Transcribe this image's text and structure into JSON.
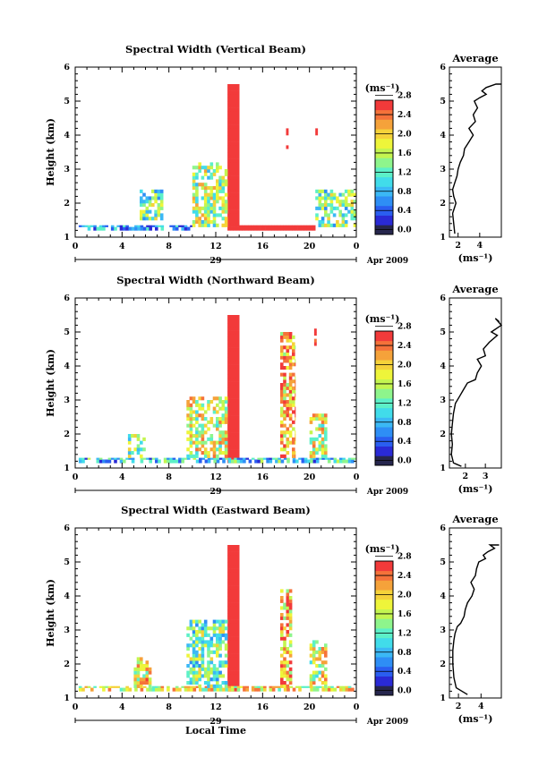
{
  "date_label": "Apr 2009",
  "day_label": "29",
  "local_time_label": "Local Time",
  "colorbar_unit": "(ms⁻¹)",
  "colorbar_colors": [
    "#26264d",
    "#2a2ad6",
    "#2a5ef0",
    "#2e8ef5",
    "#3bb8f5",
    "#41dcea",
    "#5cf0c8",
    "#8ef58c",
    "#c4f550",
    "#eef53a",
    "#f5d23a",
    "#f5a23a",
    "#f5723a",
    "#f23a3a"
  ],
  "colorbar_ticks": [
    "0.0",
    "0.4",
    "0.8",
    "1.2",
    "1.6",
    "2.0",
    "2.4",
    "2.8"
  ],
  "panels": [
    {
      "title": "Spectral Width (Vertical Beam)",
      "ylabel": "Height (km)",
      "avg_title": "Average",
      "avg_xlabel": "(ms⁻¹)",
      "avg_xticks": [
        "2",
        "4"
      ],
      "avg_xlim": [
        1.2,
        6.0
      ]
    },
    {
      "title": "Spectral Width (Northward Beam)",
      "ylabel": "Height (km)",
      "avg_title": "Average",
      "avg_xlabel": "(ms⁻¹)",
      "avg_xticks": [
        "2",
        "3"
      ],
      "avg_xlim": [
        1.2,
        3.8
      ]
    },
    {
      "title": "Spectral Width (Eastward Beam)",
      "ylabel": "Height (km)",
      "avg_title": "Average",
      "avg_xlabel": "(ms⁻¹)",
      "avg_xticks": [
        "2",
        "4"
      ],
      "avg_xlim": [
        1.2,
        5.8
      ]
    }
  ],
  "chart_data": [
    {
      "type": "heatmap",
      "title": "Spectral Width (Vertical Beam)",
      "ylabel": "Height (km)",
      "xticks": [
        "0",
        "4",
        "8",
        "12",
        "16",
        "20",
        "0"
      ],
      "yticks": [
        "1",
        "2",
        "3",
        "4",
        "5",
        "6"
      ],
      "xlim": [
        0,
        24
      ],
      "ylim": [
        1,
        6
      ],
      "colorbar": {
        "label": "(ms⁻¹)",
        "ticks": [
          0.0,
          0.4,
          0.8,
          1.2,
          1.6,
          2.0,
          2.4,
          2.8
        ]
      },
      "regions": [
        {
          "x": [
            13.0,
            14.0
          ],
          "y": [
            1.2,
            5.5
          ],
          "value": 3.0
        },
        {
          "x": [
            14.0,
            20.5
          ],
          "y": [
            1.2,
            1.35
          ],
          "value": 3.0
        },
        {
          "x": [
            0.3,
            10.0
          ],
          "y": [
            1.2,
            1.35
          ],
          "value": 0.8
        },
        {
          "x": [
            10.0,
            13.0
          ],
          "y": [
            1.3,
            3.2
          ],
          "value": 1.6
        },
        {
          "x": [
            20.5,
            24.0
          ],
          "y": [
            1.3,
            2.4
          ],
          "value": 1.4
        },
        {
          "x": [
            5.5,
            7.5
          ],
          "y": [
            1.5,
            2.4
          ],
          "value": 1.4
        },
        {
          "x": [
            18.0,
            18.2
          ],
          "y": [
            3.3,
            4.2
          ],
          "value": 2.8
        },
        {
          "x": [
            20.5,
            20.7
          ],
          "y": [
            4.0,
            4.3
          ],
          "value": 2.8
        }
      ]
    },
    {
      "type": "heatmap",
      "title": "Spectral Width (Northward Beam)",
      "ylabel": "Height (km)",
      "xticks": [
        "0",
        "4",
        "8",
        "12",
        "16",
        "20",
        "0"
      ],
      "yticks": [
        "1",
        "2",
        "3",
        "4",
        "5",
        "6"
      ],
      "xlim": [
        0,
        24
      ],
      "ylim": [
        1,
        6
      ],
      "colorbar": {
        "label": "(ms⁻¹)",
        "ticks": [
          0.0,
          0.4,
          0.8,
          1.2,
          1.6,
          2.0,
          2.4,
          2.8
        ]
      },
      "regions": [
        {
          "x": [
            13.0,
            14.0
          ],
          "y": [
            1.15,
            5.5
          ],
          "value": 3.0
        },
        {
          "x": [
            0.3,
            24.0
          ],
          "y": [
            1.15,
            1.3
          ],
          "value": 1.0
        },
        {
          "x": [
            9.5,
            13.0
          ],
          "y": [
            1.3,
            3.1
          ],
          "value": 1.8
        },
        {
          "x": [
            17.5,
            18.8
          ],
          "y": [
            1.3,
            5.0
          ],
          "value": 2.2
        },
        {
          "x": [
            20.0,
            21.5
          ],
          "y": [
            1.3,
            2.6
          ],
          "value": 1.8
        },
        {
          "x": [
            4.5,
            6.0
          ],
          "y": [
            1.3,
            2.0
          ],
          "value": 1.4
        },
        {
          "x": [
            20.4,
            20.6
          ],
          "y": [
            4.6,
            5.1
          ],
          "value": 2.8
        }
      ]
    },
    {
      "type": "heatmap",
      "title": "Spectral Width (Eastward Beam)",
      "ylabel": "Height (km)",
      "xticks": [
        "0",
        "4",
        "8",
        "12",
        "16",
        "20",
        "0"
      ],
      "yticks": [
        "1",
        "2",
        "3",
        "4",
        "5",
        "6"
      ],
      "xlim": [
        0,
        24
      ],
      "ylim": [
        1,
        6
      ],
      "xlabel": "Local Time",
      "colorbar": {
        "label": "(ms⁻¹)",
        "ticks": [
          0.0,
          0.4,
          0.8,
          1.2,
          1.6,
          2.0,
          2.4,
          2.8
        ]
      },
      "regions": [
        {
          "x": [
            13.0,
            14.0
          ],
          "y": [
            1.2,
            5.5
          ],
          "value": 3.0
        },
        {
          "x": [
            0.3,
            24.0
          ],
          "y": [
            1.2,
            1.35
          ],
          "value": 1.9
        },
        {
          "x": [
            9.5,
            13.0
          ],
          "y": [
            1.3,
            3.3
          ],
          "value": 1.4
        },
        {
          "x": [
            17.5,
            18.5
          ],
          "y": [
            1.3,
            4.2
          ],
          "value": 2.2
        },
        {
          "x": [
            20.0,
            21.5
          ],
          "y": [
            1.3,
            2.7
          ],
          "value": 1.8
        },
        {
          "x": [
            5.0,
            6.5
          ],
          "y": [
            1.3,
            2.2
          ],
          "value": 2.0
        }
      ]
    },
    {
      "type": "line",
      "title": "Average",
      "xlabel": "(ms⁻¹)",
      "xlim": [
        1.2,
        6.0
      ],
      "ylim": [
        1,
        6
      ],
      "x": [
        1.7,
        1.6,
        1.5,
        1.8,
        1.6,
        1.5,
        1.7,
        1.9,
        2.0,
        2.2,
        2.5,
        2.6,
        3.0,
        3.2,
        3.4,
        3.0,
        3.6,
        3.4,
        3.8,
        3.5,
        4.0,
        4.6,
        4.2,
        4.6,
        5.5,
        6.0
      ],
      "y": [
        1.1,
        1.4,
        1.7,
        2.0,
        2.2,
        2.4,
        2.6,
        2.8,
        3.0,
        3.2,
        3.4,
        3.6,
        3.8,
        3.9,
        4.0,
        4.2,
        4.4,
        4.6,
        4.8,
        5.0,
        5.1,
        5.2,
        5.3,
        5.4,
        5.5,
        5.5
      ]
    },
    {
      "type": "line",
      "title": "Average",
      "xlabel": "(ms⁻¹)",
      "xlim": [
        1.2,
        3.8
      ],
      "ylim": [
        1,
        6
      ],
      "x": [
        1.8,
        1.4,
        1.3,
        1.35,
        1.3,
        1.35,
        1.4,
        1.5,
        1.7,
        1.9,
        2.1,
        2.5,
        2.6,
        2.8,
        2.6,
        3.0,
        2.9,
        3.2,
        3.6,
        3.3,
        3.8,
        3.5,
        3.7
      ],
      "y": [
        1.05,
        1.15,
        1.4,
        1.7,
        2.0,
        2.3,
        2.6,
        2.9,
        3.1,
        3.3,
        3.5,
        3.6,
        3.8,
        4.0,
        4.2,
        4.3,
        4.5,
        4.7,
        4.9,
        5.0,
        5.2,
        5.4,
        5.3
      ]
    },
    {
      "type": "line",
      "title": "Average",
      "xlabel": "(ms⁻¹)",
      "xlim": [
        1.2,
        5.8
      ],
      "ylim": [
        1,
        6
      ],
      "x": [
        2.8,
        1.8,
        1.6,
        1.5,
        1.5,
        1.6,
        1.7,
        1.9,
        2.2,
        2.5,
        2.6,
        2.8,
        3.2,
        3.4,
        3.1,
        3.5,
        3.6,
        3.8,
        4.4,
        4.2,
        4.6,
        5.2,
        4.8,
        5.6
      ],
      "y": [
        1.1,
        1.3,
        1.6,
        2.0,
        2.4,
        2.7,
        2.9,
        3.1,
        3.2,
        3.4,
        3.6,
        3.8,
        4.0,
        4.2,
        4.4,
        4.6,
        4.8,
        5.0,
        5.1,
        5.2,
        5.3,
        5.4,
        5.5,
        5.5
      ]
    }
  ]
}
